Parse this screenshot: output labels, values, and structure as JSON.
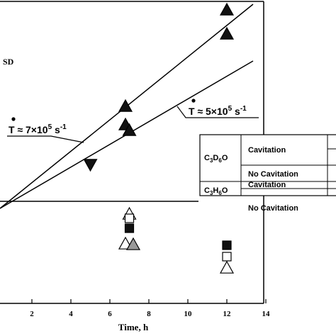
{
  "chart_data": {
    "type": "scatter",
    "xlabel": "Time, h",
    "x_ticks": [
      "2",
      "4",
      "6",
      "8",
      "10",
      "12",
      "14"
    ],
    "xlim": [
      0,
      14
    ],
    "panel_label": "SD",
    "fits": [
      {
        "label": "Ṫ ≈ 7×10⁵ s⁻¹",
        "label_parts": {
          "main": "T ≈ 7×10",
          "exp": "5",
          "unit": " s",
          "unit_exp": "-1"
        }
      },
      {
        "label": "Ṫ ≈ 5×10⁵ s⁻¹",
        "label_parts": {
          "main": "T ≈ 5×10",
          "exp": "5",
          "unit": " s",
          "unit_exp": "-1"
        }
      }
    ],
    "series": [
      {
        "marker": "filled-triangle-up",
        "points": [
          [
            6.8,
            0
          ],
          [
            6.8,
            0
          ],
          [
            7.0,
            0
          ],
          [
            12.0,
            0
          ],
          [
            12.0,
            0
          ]
        ]
      },
      {
        "marker": "filled-triangle-down",
        "points": [
          [
            5.0,
            0
          ]
        ]
      },
      {
        "marker": "open-triangle-up",
        "points": [
          [
            7.0,
            0
          ],
          [
            6.8,
            0
          ],
          [
            12.0,
            0
          ]
        ]
      },
      {
        "marker": "filled-square",
        "points": [
          [
            7.0,
            0
          ],
          [
            12.0,
            0
          ]
        ]
      },
      {
        "marker": "open-square",
        "points": [
          [
            7.0,
            0
          ],
          [
            12.0,
            0
          ]
        ]
      },
      {
        "marker": "gray-triangle-up",
        "points": [
          [
            7.2,
            0
          ]
        ]
      }
    ]
  },
  "legend_table": {
    "rows": [
      {
        "compound": {
          "main": "C",
          "s1": "3",
          "mid": "D",
          "s2": "6",
          "end": "O"
        },
        "condition": "Cavitation"
      },
      {
        "compound": null,
        "condition": "No Cavitation"
      },
      {
        "compound": {
          "main": "C",
          "s1": "3",
          "mid": "H",
          "s2": "6",
          "end": "O"
        },
        "condition": "Cavitation"
      },
      {
        "compound": null,
        "condition": "No Cavitation"
      }
    ]
  }
}
